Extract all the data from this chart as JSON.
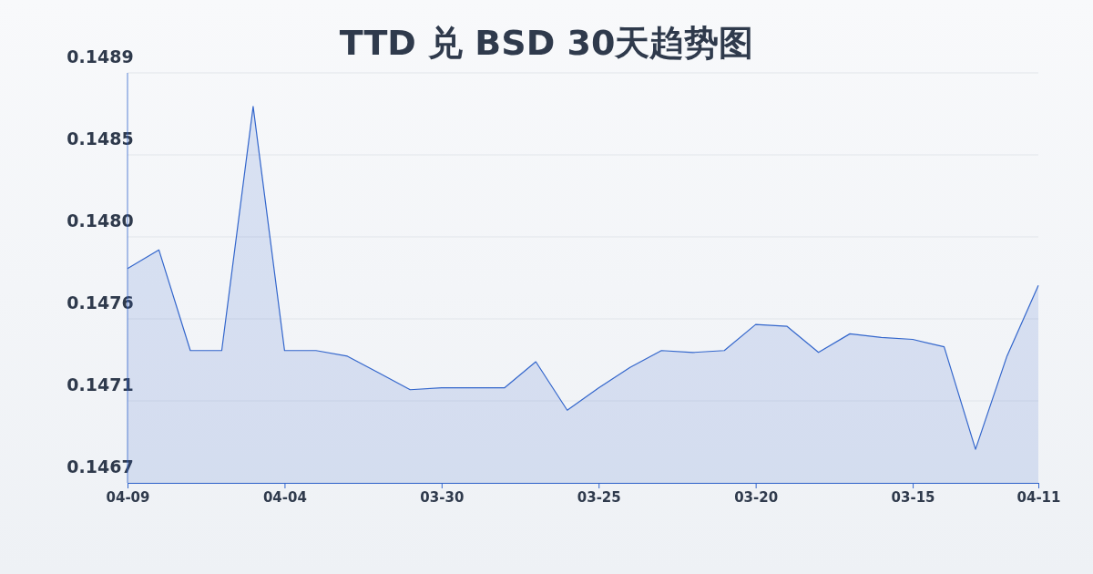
{
  "chart_data": {
    "type": "area",
    "title": "TTD 兑 BSD 30天趋势图",
    "categories": [
      "04-09",
      null,
      null,
      null,
      null,
      "04-04",
      null,
      null,
      null,
      null,
      "03-30",
      null,
      null,
      null,
      null,
      "03-25",
      null,
      null,
      null,
      null,
      "03-20",
      null,
      null,
      null,
      null,
      "03-15",
      null,
      null,
      null,
      "04-11"
    ],
    "series": [
      {
        "color": "#3366cc",
        "values": [
          0.14785,
          0.14795,
          0.14741,
          0.14741,
          0.14872,
          0.14741,
          0.14741,
          0.14738,
          0.14729,
          0.1472,
          0.14721,
          0.14721,
          0.14721,
          0.14735,
          0.14709,
          0.14721,
          0.14732,
          0.14741,
          0.1474,
          0.14741,
          0.14755,
          0.14754,
          0.1474,
          0.1475,
          0.14748,
          0.14747,
          0.14743,
          0.14688,
          0.14738,
          0.14776
        ]
      }
    ],
    "ylim": [
      0.1467,
      0.1489
    ],
    "yticks": [
      {
        "value": 0.1467,
        "label": "0.1467"
      },
      {
        "value": 0.14714,
        "label": "0.1471"
      },
      {
        "value": 0.14758,
        "label": "0.1476"
      },
      {
        "value": 0.14802,
        "label": "0.1480"
      },
      {
        "value": 0.14846,
        "label": "0.1485"
      },
      {
        "value": 0.1489,
        "label": "0.1489"
      }
    ],
    "grid": "y"
  }
}
